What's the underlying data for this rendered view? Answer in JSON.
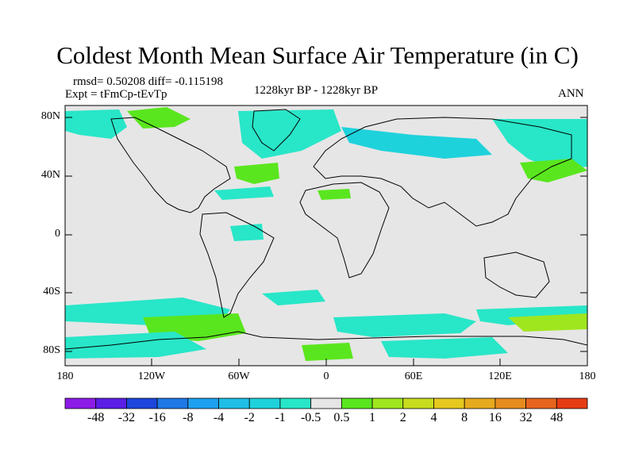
{
  "title": "Coldest Month Mean Surface Air Temperature (in C)",
  "stats": "rmsd= 0.50208 diff= -0.115198",
  "expt": "Expt = tFmCp-tEvTp",
  "period": "1228kyr BP - 1228kyr BP",
  "season": "ANN",
  "y_ticks": [
    "80N",
    "40N",
    "0",
    "40S",
    "80S"
  ],
  "x_ticks": [
    "180",
    "120W",
    "60W",
    "0",
    "60E",
    "120E",
    "180"
  ],
  "colorbar": {
    "colors": [
      "#8c1be8",
      "#5a1ee6",
      "#1e46dc",
      "#1e78e6",
      "#1ea0f0",
      "#1ebee6",
      "#1ed2dc",
      "#28e6c8",
      "#e6e6e6",
      "#5ae61e",
      "#a0e61e",
      "#c8dc1e",
      "#e6c81e",
      "#e6aa1e",
      "#e68c1e",
      "#e6641e",
      "#e63c14"
    ],
    "labels": [
      "-48",
      "-32",
      "-16",
      "-8",
      "-4",
      "-2",
      "-1",
      "-0.5",
      "0.5",
      "1",
      "2",
      "4",
      "8",
      "16",
      "32",
      "48"
    ]
  },
  "palette": {
    "land_bg": "#e6e6e6",
    "cool": "#28e6c8",
    "cooler": "#1ed2dc",
    "warm": "#5ae61e",
    "warmer": "#a0e61e"
  }
}
